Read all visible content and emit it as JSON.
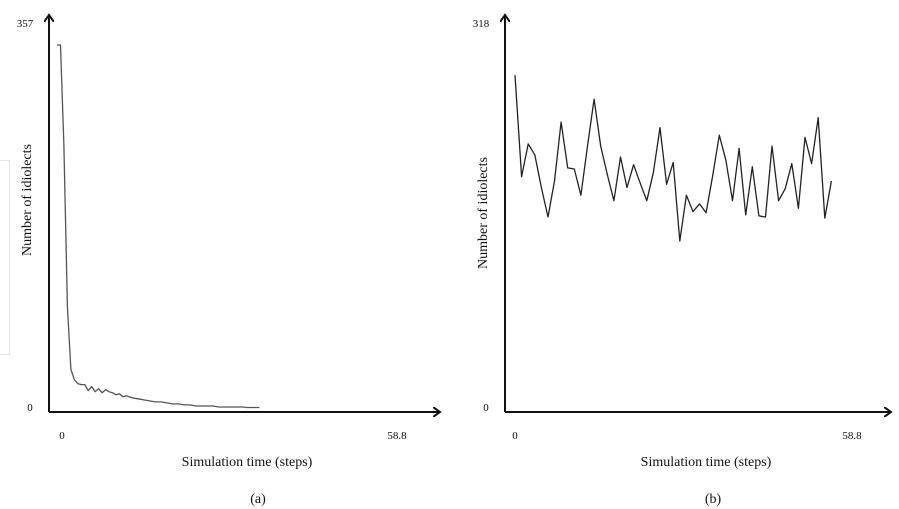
{
  "chart_data": [
    {
      "type": "line",
      "caption": "(a)",
      "xlabel": "Simulation time (steps)",
      "ylabel": "Number of idiolects",
      "xlim": [
        0,
        58.8
      ],
      "ylim": [
        0,
        357
      ],
      "x_ticks": [
        "0",
        "58.8"
      ],
      "y_ticks": [
        "0",
        "357"
      ],
      "grid": false,
      "series": [
        {
          "color": "#555555",
          "x": [
            0,
            0.6,
            1.2,
            1.8,
            2.4,
            3.0,
            3.6,
            4.2,
            4.8,
            5.4,
            6.0,
            6.6,
            7.2,
            7.8,
            8.4,
            9.0,
            9.6,
            10.2,
            10.8,
            11.4,
            12.0,
            13.0,
            14.0,
            15.0,
            16.0,
            17.0,
            18.0,
            19.0,
            20.0,
            21.0,
            22.0,
            23.0,
            24.0,
            25.0,
            26.0,
            27.0,
            28.0,
            29.0,
            30.0,
            31.0,
            32.0,
            33.0,
            34.0,
            35.0
          ],
          "y": [
            357,
            357,
            258,
            100,
            38,
            28,
            24,
            23,
            23,
            17,
            21,
            16,
            19,
            15,
            18,
            16,
            15,
            13,
            14,
            11,
            12,
            10,
            9,
            8,
            7,
            6,
            6,
            5,
            4,
            4,
            3,
            3,
            2,
            2,
            2,
            2,
            1,
            1,
            1,
            1,
            1,
            0.5,
            0.5,
            0.5
          ]
        }
      ]
    },
    {
      "type": "line",
      "caption": "(b)",
      "xlabel": "Simulation time (steps)",
      "ylabel": "Number of idiolects",
      "xlim": [
        0,
        58.8
      ],
      "ylim": [
        0,
        318
      ],
      "x_ticks": [
        "0",
        "58.8"
      ],
      "y_ticks": [
        "0",
        "318"
      ],
      "grid": false,
      "series": [
        {
          "color": "#222222",
          "x": [
            0,
            1.15,
            2.3,
            3.45,
            4.6,
            5.75,
            6.9,
            8.05,
            9.2,
            10.35,
            11.5,
            12.65,
            13.8,
            14.95,
            16.1,
            17.25,
            18.4,
            19.55,
            20.7,
            21.85,
            23.0,
            24.15,
            25.3,
            26.45,
            27.6,
            28.75,
            29.9,
            31.05,
            32.2,
            33.35,
            34.5,
            35.65,
            36.8,
            37.95,
            39.1,
            40.25,
            41.4,
            42.55,
            43.7,
            44.85,
            46.0,
            47.15,
            48.3,
            49.45,
            50.6,
            51.75,
            52.9,
            54.05,
            55.2
          ],
          "y": [
            305,
            212,
            242,
            232,
            202,
            175,
            208,
            262,
            220,
            219,
            195,
            240,
            283,
            240,
            214,
            190,
            230,
            202,
            223,
            206,
            190,
            216,
            257,
            205,
            225,
            153,
            195,
            180,
            187,
            179,
            213,
            250,
            227,
            190,
            238,
            177,
            221,
            176,
            175,
            240,
            190,
            201,
            224,
            183,
            248,
            224,
            266,
            174,
            208
          ]
        }
      ]
    }
  ]
}
